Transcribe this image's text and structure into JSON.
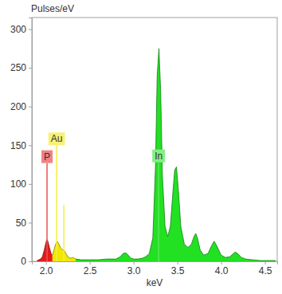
{
  "chart_data": {
    "type": "area",
    "y_label": "Pulses/eV",
    "x_label": "keV",
    "xlim": [
      1.84,
      4.64
    ],
    "ylim": [
      0,
      315
    ],
    "xticks": [
      {
        "value": 2,
        "label": "2.0"
      },
      {
        "value": 2.5,
        "label": "2.5"
      },
      {
        "value": 3,
        "label": "3.0"
      },
      {
        "value": 3.5,
        "label": "3.5"
      },
      {
        "value": 4,
        "label": "4.0"
      },
      {
        "value": 4.5,
        "label": "4.5"
      }
    ],
    "yticks": [
      0,
      50,
      100,
      150,
      200,
      250,
      300
    ],
    "grid": false,
    "series": [
      {
        "name": "P",
        "color": "#e31b1b",
        "x": [
          1.9,
          1.94,
          1.96,
          1.98,
          2.0,
          2.01,
          2.02,
          2.04,
          2.06,
          2.075
        ],
        "values": [
          1,
          3,
          6,
          14,
          24,
          28,
          27,
          18,
          10,
          8
        ],
        "lines": [
          {
            "x": 2.013,
            "y": 127
          }
        ]
      },
      {
        "name": "Au",
        "color": "#f0e800",
        "x": [
          2.075,
          2.09,
          2.11,
          2.13,
          2.15,
          2.17,
          2.19,
          2.21,
          2.23,
          2.25,
          2.28,
          2.31,
          2.34
        ],
        "values": [
          8,
          14,
          22,
          26,
          22,
          17,
          15,
          14,
          10,
          6,
          4,
          5,
          3
        ],
        "lines": [
          {
            "x": 2.123,
            "y": 150
          },
          {
            "x": 2.205,
            "y": 73
          }
        ]
      },
      {
        "name": "In",
        "color": "#22e022",
        "x": [
          2.34,
          2.4,
          2.5,
          2.6,
          2.7,
          2.8,
          2.85,
          2.88,
          2.91,
          2.94,
          2.97,
          3.0,
          3.05,
          3.1,
          3.14,
          3.18,
          3.22,
          3.25,
          3.27,
          3.29,
          3.31,
          3.33,
          3.36,
          3.39,
          3.42,
          3.45,
          3.47,
          3.49,
          3.51,
          3.54,
          3.58,
          3.62,
          3.66,
          3.69,
          3.71,
          3.73,
          3.76,
          3.8,
          3.85,
          3.89,
          3.92,
          3.95,
          4.0,
          4.05,
          4.1,
          4.14,
          4.16,
          4.19,
          4.23,
          4.28,
          4.35,
          4.45,
          4.55,
          4.62
        ],
        "values": [
          3,
          2,
          2,
          2,
          3,
          3,
          6,
          10,
          11,
          8,
          4,
          3,
          3,
          4,
          6,
          10,
          30,
          120,
          240,
          275,
          220,
          110,
          45,
          32,
          45,
          90,
          118,
          122,
          95,
          45,
          22,
          18,
          22,
          32,
          36,
          30,
          15,
          8,
          10,
          20,
          26,
          20,
          8,
          5,
          6,
          10,
          12,
          10,
          5,
          3,
          2,
          1,
          1,
          1
        ],
        "lines": [
          {
            "x": 3.287,
            "y": 128
          }
        ]
      }
    ]
  }
}
